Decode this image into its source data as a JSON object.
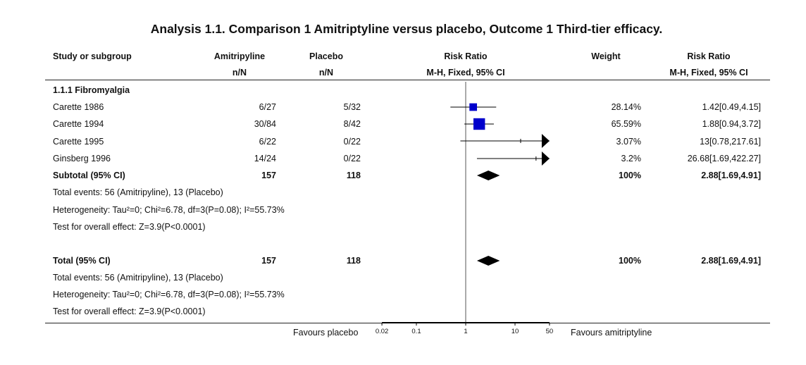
{
  "title": "Analysis 1.1.   Comparison 1 Amitriptyline versus placebo, Outcome 1 Third-tier efficacy.",
  "headers": {
    "study": "Study or subgroup",
    "group1": "Amitripyline",
    "group2": "Placebo",
    "rr_plot": "Risk Ratio",
    "weight": "Weight",
    "rr_text": "Risk Ratio",
    "n1": "n/N",
    "n2": "n/N",
    "rr_plot_method": "M-H, Fixed, 95% CI",
    "rr_text_method": "M-H, Fixed, 95% CI"
  },
  "subgroup_title": "1.1.1 Fibromyalgia",
  "subtotal": {
    "label": "Subtotal (95% CI)",
    "n1": "157",
    "n2": "118",
    "weight": "100%",
    "rr": "2.88[1.69,4.91]"
  },
  "subgroup_notes": {
    "events": "Total events: 56 (Amitripyline), 13 (Placebo)",
    "heterogeneity": "Heterogeneity: Tau²=0; Chi²=6.78, df=3(P=0.08); I²=55.73%",
    "overall": "Test for overall effect: Z=3.9(P<0.0001)"
  },
  "total": {
    "label": "Total (95% CI)",
    "n1": "157",
    "n2": "118",
    "weight": "100%",
    "rr": "2.88[1.69,4.91]"
  },
  "total_notes": {
    "events": "Total events: 56 (Amitripyline), 13 (Placebo)",
    "heterogeneity": "Heterogeneity: Tau²=0; Chi²=6.78, df=3(P=0.08); I²=55.73%",
    "overall": "Test for overall effect: Z=3.9(P<0.0001)"
  },
  "footer": {
    "favours_left": "Favours placebo",
    "favours_right": "Favours amitriptyline"
  },
  "colors": {
    "square": "#0000cc",
    "line": "#000000"
  },
  "chart_data": {
    "type": "forest",
    "scale": "log",
    "xlim": [
      0.02,
      50
    ],
    "ticks": [
      {
        "value": 0.02,
        "label": "0.02"
      },
      {
        "value": 0.1,
        "label": "0.1"
      },
      {
        "value": 1,
        "label": "1"
      },
      {
        "value": 10,
        "label": "10"
      },
      {
        "value": 50,
        "label": "50"
      }
    ],
    "studies": [
      {
        "name": "Carette 1986",
        "n1": "6/27",
        "n2": "5/32",
        "rr": 1.42,
        "lo": 0.49,
        "hi": 4.15,
        "weight": 28.14,
        "weight_label": "28.14%",
        "rr_label": "1.42[0.49,4.15]"
      },
      {
        "name": "Carette 1994",
        "n1": "30/84",
        "n2": "8/42",
        "rr": 1.88,
        "lo": 0.94,
        "hi": 3.72,
        "weight": 65.59,
        "weight_label": "65.59%",
        "rr_label": "1.88[0.94,3.72]"
      },
      {
        "name": "Carette 1995",
        "n1": "6/22",
        "n2": "0/22",
        "rr": 13,
        "lo": 0.78,
        "hi": 217.61,
        "weight": 3.07,
        "weight_label": "3.07%",
        "rr_label": "13[0.78,217.61]"
      },
      {
        "name": "Ginsberg 1996",
        "n1": "14/24",
        "n2": "0/22",
        "rr": 26.68,
        "lo": 1.69,
        "hi": 422.27,
        "weight": 3.2,
        "weight_label": "3.2%",
        "rr_label": "26.68[1.69,422.27]"
      }
    ],
    "subtotal": {
      "rr": 2.88,
      "lo": 1.69,
      "hi": 4.91
    },
    "total": {
      "rr": 2.88,
      "lo": 1.69,
      "hi": 4.91
    }
  }
}
